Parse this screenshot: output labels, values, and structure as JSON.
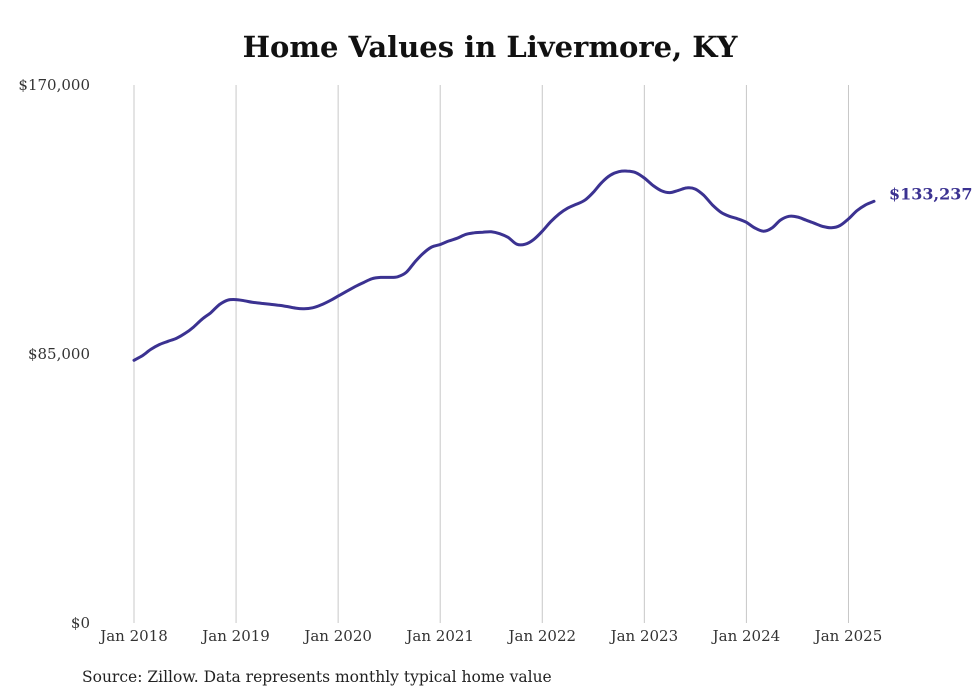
{
  "chart_data": {
    "type": "line",
    "title": "Home Values in Livermore, KY",
    "xlabel": "",
    "ylabel": "",
    "ylim": [
      0,
      170000
    ],
    "y_ticks": [
      {
        "value": 0,
        "label": "$0"
      },
      {
        "value": 85000,
        "label": "$85,000"
      },
      {
        "value": 170000,
        "label": "$170,000"
      }
    ],
    "x_ticks": [
      {
        "value": 2018.0,
        "label": "Jan 2018"
      },
      {
        "value": 2019.0,
        "label": "Jan 2019"
      },
      {
        "value": 2020.0,
        "label": "Jan 2020"
      },
      {
        "value": 2021.0,
        "label": "Jan 2021"
      },
      {
        "value": 2022.0,
        "label": "Jan 2022"
      },
      {
        "value": 2023.0,
        "label": "Jan 2023"
      },
      {
        "value": 2024.0,
        "label": "Jan 2024"
      },
      {
        "value": 2025.0,
        "label": "Jan 2025"
      }
    ],
    "xlim": [
      2018.0,
      2025.25
    ],
    "grid": "vertical",
    "line_color": "#3b3291",
    "end_label": "$133,237",
    "series": [
      {
        "name": "",
        "points": [
          [
            2018.0,
            83000
          ],
          [
            2018.083,
            84500
          ],
          [
            2018.167,
            86500
          ],
          [
            2018.25,
            88000
          ],
          [
            2018.333,
            89000
          ],
          [
            2018.417,
            90000
          ],
          [
            2018.5,
            91500
          ],
          [
            2018.583,
            93500
          ],
          [
            2018.667,
            96000
          ],
          [
            2018.75,
            98000
          ],
          [
            2018.833,
            100500
          ],
          [
            2018.917,
            102000
          ],
          [
            2019.0,
            102200
          ],
          [
            2019.083,
            101800
          ],
          [
            2019.167,
            101300
          ],
          [
            2019.25,
            101000
          ],
          [
            2019.333,
            100700
          ],
          [
            2019.417,
            100400
          ],
          [
            2019.5,
            100000
          ],
          [
            2019.583,
            99500
          ],
          [
            2019.667,
            99300
          ],
          [
            2019.75,
            99600
          ],
          [
            2019.833,
            100500
          ],
          [
            2019.917,
            101800
          ],
          [
            2020.0,
            103300
          ],
          [
            2020.083,
            104800
          ],
          [
            2020.167,
            106300
          ],
          [
            2020.25,
            107600
          ],
          [
            2020.333,
            108800
          ],
          [
            2020.417,
            109200
          ],
          [
            2020.5,
            109200
          ],
          [
            2020.583,
            109400
          ],
          [
            2020.667,
            110800
          ],
          [
            2020.75,
            114000
          ],
          [
            2020.833,
            116800
          ],
          [
            2020.917,
            118800
          ],
          [
            2021.0,
            119600
          ],
          [
            2021.083,
            120700
          ],
          [
            2021.167,
            121600
          ],
          [
            2021.25,
            122800
          ],
          [
            2021.333,
            123300
          ],
          [
            2021.417,
            123500
          ],
          [
            2021.5,
            123600
          ],
          [
            2021.583,
            123000
          ],
          [
            2021.667,
            121800
          ],
          [
            2021.75,
            119700
          ],
          [
            2021.833,
            119700
          ],
          [
            2021.917,
            121200
          ],
          [
            2022.0,
            123800
          ],
          [
            2022.083,
            126800
          ],
          [
            2022.167,
            129300
          ],
          [
            2022.25,
            131100
          ],
          [
            2022.333,
            132300
          ],
          [
            2022.417,
            133600
          ],
          [
            2022.5,
            136100
          ],
          [
            2022.583,
            139200
          ],
          [
            2022.667,
            141500
          ],
          [
            2022.75,
            142600
          ],
          [
            2022.833,
            142800
          ],
          [
            2022.917,
            142300
          ],
          [
            2023.0,
            140600
          ],
          [
            2023.083,
            138300
          ],
          [
            2023.167,
            136600
          ],
          [
            2023.25,
            136000
          ],
          [
            2023.333,
            136700
          ],
          [
            2023.417,
            137500
          ],
          [
            2023.5,
            137100
          ],
          [
            2023.583,
            135100
          ],
          [
            2023.667,
            132100
          ],
          [
            2023.75,
            129800
          ],
          [
            2023.833,
            128500
          ],
          [
            2023.917,
            127700
          ],
          [
            2024.0,
            126600
          ],
          [
            2024.083,
            124800
          ],
          [
            2024.167,
            123800
          ],
          [
            2024.25,
            124800
          ],
          [
            2024.333,
            127300
          ],
          [
            2024.417,
            128500
          ],
          [
            2024.5,
            128300
          ],
          [
            2024.583,
            127300
          ],
          [
            2024.667,
            126300
          ],
          [
            2024.75,
            125300
          ],
          [
            2024.833,
            124900
          ],
          [
            2024.917,
            125600
          ],
          [
            2025.0,
            127700
          ],
          [
            2025.083,
            130300
          ],
          [
            2025.167,
            132100
          ],
          [
            2025.25,
            133237
          ]
        ]
      }
    ]
  },
  "source_note": "Source: Zillow. Data represents monthly typical home value"
}
